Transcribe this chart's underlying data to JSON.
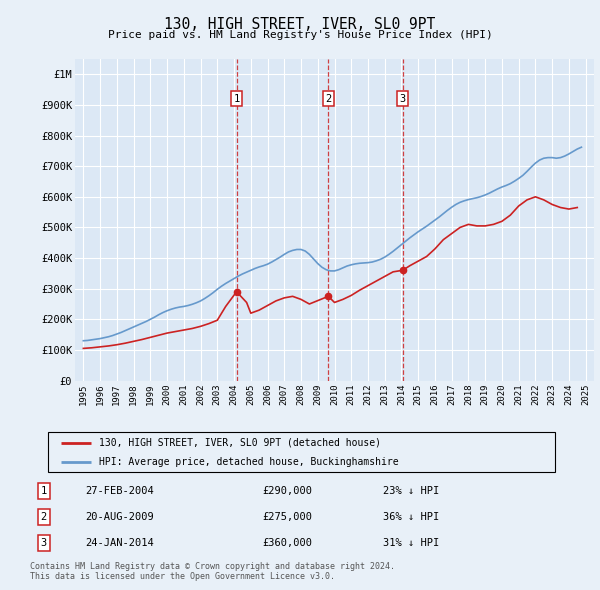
{
  "title": "130, HIGH STREET, IVER, SL0 9PT",
  "subtitle": "Price paid vs. HM Land Registry's House Price Index (HPI)",
  "background_color": "#e8f0f8",
  "plot_bg_color": "#dce8f5",
  "grid_color": "#ffffff",
  "hpi_color": "#6699cc",
  "price_color": "#cc2222",
  "dashed_line_color": "#cc2222",
  "ylim": [
    0,
    1050000
  ],
  "yticks": [
    0,
    100000,
    200000,
    300000,
    400000,
    500000,
    600000,
    700000,
    800000,
    900000,
    1000000
  ],
  "ytick_labels": [
    "£0",
    "£100K",
    "£200K",
    "£300K",
    "£400K",
    "£500K",
    "£600K",
    "£700K",
    "£800K",
    "£900K",
    "£1M"
  ],
  "xlim_start": 1994.5,
  "xlim_end": 2025.5,
  "xtick_years": [
    1995,
    1996,
    1997,
    1998,
    1999,
    2000,
    2001,
    2002,
    2003,
    2004,
    2005,
    2006,
    2007,
    2008,
    2009,
    2010,
    2011,
    2012,
    2013,
    2014,
    2015,
    2016,
    2017,
    2018,
    2019,
    2020,
    2021,
    2022,
    2023,
    2024,
    2025
  ],
  "legend_label_red": "130, HIGH STREET, IVER, SL0 9PT (detached house)",
  "legend_label_blue": "HPI: Average price, detached house, Buckinghamshire",
  "transactions": [
    {
      "num": 1,
      "date": "27-FEB-2004",
      "price": 290000,
      "pct": "23%",
      "direction": "↓",
      "year": 2004.15
    },
    {
      "num": 2,
      "date": "20-AUG-2009",
      "price": 275000,
      "pct": "36%",
      "direction": "↓",
      "year": 2009.63
    },
    {
      "num": 3,
      "date": "24-JAN-2014",
      "price": 360000,
      "pct": "31%",
      "direction": "↓",
      "year": 2014.07
    }
  ],
  "footer": "Contains HM Land Registry data © Crown copyright and database right 2024.\nThis data is licensed under the Open Government Licence v3.0.",
  "hpi_data_x": [
    1995,
    1995.25,
    1995.5,
    1995.75,
    1996,
    1996.25,
    1996.5,
    1996.75,
    1997,
    1997.25,
    1997.5,
    1997.75,
    1998,
    1998.25,
    1998.5,
    1998.75,
    1999,
    1999.25,
    1999.5,
    1999.75,
    2000,
    2000.25,
    2000.5,
    2000.75,
    2001,
    2001.25,
    2001.5,
    2001.75,
    2002,
    2002.25,
    2002.5,
    2002.75,
    2003,
    2003.25,
    2003.5,
    2003.75,
    2004,
    2004.25,
    2004.5,
    2004.75,
    2005,
    2005.25,
    2005.5,
    2005.75,
    2006,
    2006.25,
    2006.5,
    2006.75,
    2007,
    2007.25,
    2007.5,
    2007.75,
    2008,
    2008.25,
    2008.5,
    2008.75,
    2009,
    2009.25,
    2009.5,
    2009.75,
    2010,
    2010.25,
    2010.5,
    2010.75,
    2011,
    2011.25,
    2011.5,
    2011.75,
    2012,
    2012.25,
    2012.5,
    2012.75,
    2013,
    2013.25,
    2013.5,
    2013.75,
    2014,
    2014.25,
    2014.5,
    2014.75,
    2015,
    2015.25,
    2015.5,
    2015.75,
    2016,
    2016.25,
    2016.5,
    2016.75,
    2017,
    2017.25,
    2017.5,
    2017.75,
    2018,
    2018.25,
    2018.5,
    2018.75,
    2019,
    2019.25,
    2019.5,
    2019.75,
    2020,
    2020.25,
    2020.5,
    2020.75,
    2021,
    2021.25,
    2021.5,
    2021.75,
    2022,
    2022.25,
    2022.5,
    2022.75,
    2023,
    2023.25,
    2023.5,
    2023.75,
    2024,
    2024.25,
    2024.5,
    2024.75
  ],
  "hpi_data_y": [
    130000,
    131000,
    133000,
    135000,
    137000,
    140000,
    143000,
    147000,
    152000,
    157000,
    163000,
    169000,
    175000,
    181000,
    187000,
    193000,
    200000,
    207000,
    215000,
    222000,
    228000,
    233000,
    237000,
    240000,
    242000,
    245000,
    249000,
    254000,
    260000,
    268000,
    277000,
    287000,
    298000,
    308000,
    317000,
    325000,
    333000,
    341000,
    348000,
    354000,
    360000,
    366000,
    371000,
    375000,
    380000,
    387000,
    395000,
    403000,
    412000,
    420000,
    425000,
    428000,
    428000,
    423000,
    412000,
    397000,
    382000,
    370000,
    362000,
    358000,
    358000,
    362000,
    368000,
    374000,
    378000,
    381000,
    383000,
    384000,
    385000,
    387000,
    391000,
    396000,
    403000,
    412000,
    422000,
    433000,
    444000,
    455000,
    466000,
    476000,
    486000,
    495000,
    504000,
    514000,
    524000,
    534000,
    545000,
    556000,
    566000,
    575000,
    582000,
    587000,
    591000,
    594000,
    597000,
    601000,
    606000,
    612000,
    619000,
    626000,
    632000,
    637000,
    643000,
    651000,
    660000,
    670000,
    683000,
    697000,
    710000,
    720000,
    726000,
    728000,
    728000,
    726000,
    728000,
    733000,
    740000,
    748000,
    756000,
    762000
  ],
  "price_data_x": [
    1995,
    1995.5,
    1996,
    1996.5,
    1997,
    1997.5,
    1998,
    1998.5,
    1999,
    1999.5,
    2000,
    2000.5,
    2001,
    2001.5,
    2002,
    2002.5,
    2003,
    2003.5,
    2004.15,
    2004.75,
    2005,
    2005.5,
    2006,
    2006.5,
    2007,
    2007.5,
    2008,
    2008.5,
    2009.63,
    2010,
    2010.5,
    2011,
    2011.5,
    2012,
    2012.5,
    2013,
    2013.5,
    2014.07,
    2014.5,
    2015,
    2015.5,
    2016,
    2016.5,
    2017,
    2017.5,
    2018,
    2018.5,
    2019,
    2019.5,
    2020,
    2020.5,
    2021,
    2021.5,
    2022,
    2022.5,
    2023,
    2023.5,
    2024,
    2024.5
  ],
  "price_data_y": [
    105000,
    107000,
    110000,
    113000,
    117000,
    122000,
    128000,
    134000,
    141000,
    148000,
    155000,
    160000,
    165000,
    170000,
    177000,
    186000,
    197000,
    242000,
    290000,
    255000,
    220000,
    230000,
    245000,
    260000,
    270000,
    275000,
    265000,
    250000,
    275000,
    255000,
    265000,
    278000,
    295000,
    310000,
    325000,
    340000,
    355000,
    360000,
    375000,
    390000,
    405000,
    430000,
    460000,
    480000,
    500000,
    510000,
    505000,
    505000,
    510000,
    520000,
    540000,
    570000,
    590000,
    600000,
    590000,
    575000,
    565000,
    560000,
    565000
  ]
}
